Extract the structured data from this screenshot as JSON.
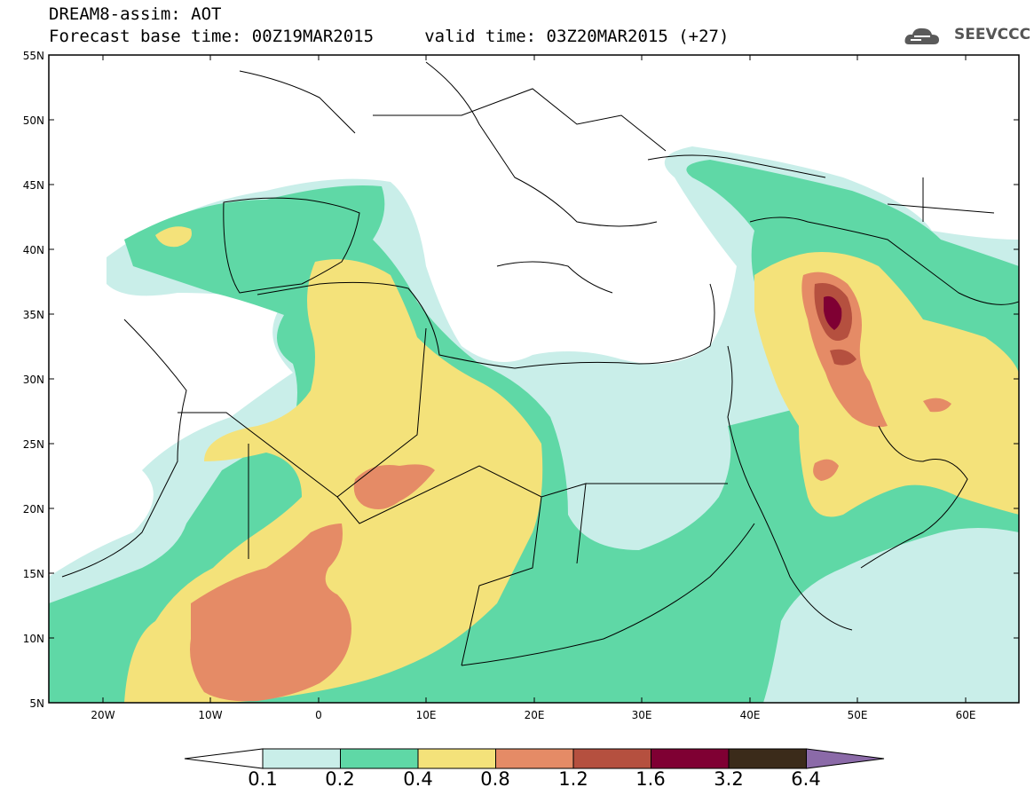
{
  "header": {
    "title_line1": "DREAM8-assim: AOT",
    "title_line2": "Forecast base time: 00Z19MAR2015     valid time: 03Z20MAR2015 (+27)",
    "logo_text": "SEEVCCC"
  },
  "map": {
    "lat_labels": [
      "55N",
      "50N",
      "45N",
      "40N",
      "35N",
      "30N",
      "25N",
      "20N",
      "15N",
      "10N",
      "5N"
    ],
    "lon_labels": [
      "20W",
      "10W",
      "0",
      "10E",
      "20E",
      "30E",
      "40E",
      "50E",
      "60E"
    ],
    "lat_range": [
      5,
      55
    ],
    "lon_range": [
      -25,
      65
    ],
    "variable": "AOT"
  },
  "colorbar": {
    "labels": [
      "0.1",
      "0.2",
      "0.4",
      "0.8",
      "1.2",
      "1.6",
      "3.2",
      "6.4"
    ],
    "colors": [
      "#ffffff",
      "#c9eee9",
      "#5fd8a6",
      "#f4e27a",
      "#e58b66",
      "#b5503f",
      "#7f0033",
      "#3b2b1a",
      "#8b6aa8"
    ]
  }
}
